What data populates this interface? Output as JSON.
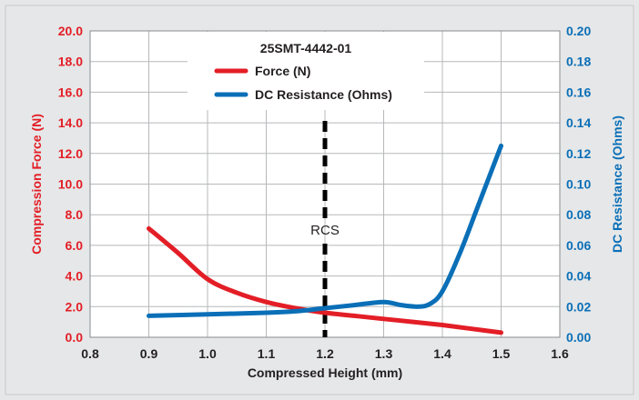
{
  "chart_data": {
    "type": "line",
    "title": "25SMT-4442-01",
    "xlabel": "Compressed Height (mm)",
    "ylabel": "Compression Force (N)",
    "y2label": "DC Resistance (Ohms)",
    "xlim": [
      0.8,
      1.6
    ],
    "ylim": [
      0,
      20
    ],
    "y2lim": [
      0,
      0.2
    ],
    "x_ticks": [
      "0.8",
      "0.9",
      "1.0",
      "1.1",
      "1.2",
      "1.3",
      "1.4",
      "1.5",
      "1.6"
    ],
    "y_ticks": [
      "0.0",
      "2.0",
      "4.0",
      "6.0",
      "8.0",
      "10.0",
      "12.0",
      "14.0",
      "16.0",
      "18.0",
      "20.0"
    ],
    "y2_ticks": [
      "0.00",
      "0.02",
      "0.04",
      "0.06",
      "0.08",
      "0.10",
      "0.12",
      "0.14",
      "0.16",
      "0.18",
      "0.20"
    ],
    "grid": true,
    "legend_position": "top-center",
    "series": [
      {
        "name": "Force (N)",
        "axis": "left",
        "color": "#e31e26",
        "x": [
          0.9,
          0.95,
          1.0,
          1.05,
          1.1,
          1.15,
          1.2,
          1.25,
          1.3,
          1.35,
          1.4,
          1.45,
          1.5
        ],
        "y": [
          7.1,
          5.5,
          3.8,
          2.9,
          2.3,
          1.9,
          1.6,
          1.4,
          1.2,
          1.0,
          0.8,
          0.55,
          0.3
        ]
      },
      {
        "name": "DC Resistance (Ohms)",
        "axis": "right",
        "color": "#0a6fb7",
        "x": [
          0.9,
          1.0,
          1.1,
          1.15,
          1.2,
          1.25,
          1.3,
          1.33,
          1.36,
          1.38,
          1.4,
          1.43,
          1.46,
          1.5
        ],
        "y": [
          0.014,
          0.015,
          0.016,
          0.017,
          0.019,
          0.021,
          0.023,
          0.021,
          0.02,
          0.022,
          0.03,
          0.055,
          0.085,
          0.125
        ]
      }
    ],
    "annotations": [
      {
        "text": "RCS",
        "x": 1.2,
        "style": "dashed vertical line",
        "color": "#000000"
      }
    ],
    "colors": {
      "left_axis": "#e31e26",
      "right_axis": "#0a6fb7",
      "frame_background": "#e6e7e8",
      "plot_background": "#ffffff",
      "grid": "#b7b8ba"
    }
  }
}
